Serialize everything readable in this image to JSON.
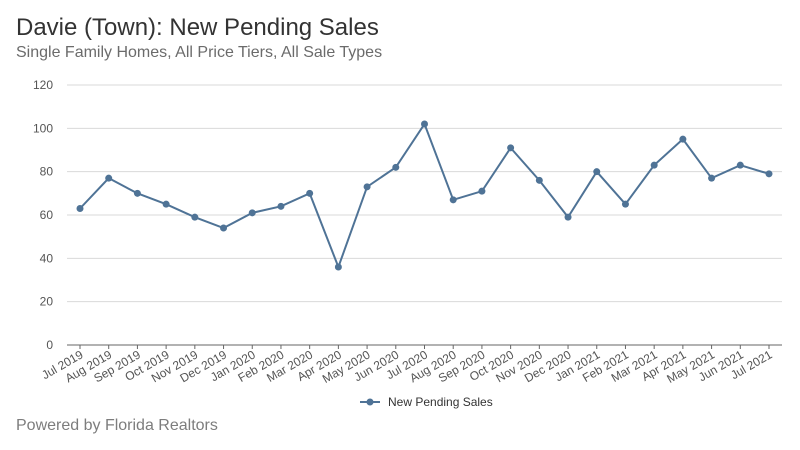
{
  "header": {
    "title": "Davie (Town): New Pending Sales",
    "subtitle": "Single Family Homes, All Price Tiers, All Sale Types"
  },
  "footer": {
    "text": "Powered by Florida Realtors"
  },
  "colors": {
    "series": "#4f7396",
    "grid": "#d9d9d9",
    "axis": "#666666"
  },
  "chart_data": {
    "type": "line",
    "title": "Davie (Town): New Pending Sales",
    "subtitle": "Single Family Homes, All Price Tiers, All Sale Types",
    "xlabel": "",
    "ylabel": "",
    "ylim": [
      0,
      120
    ],
    "yticks": [
      0,
      20,
      40,
      60,
      80,
      100,
      120
    ],
    "grid": true,
    "legend": "bottom-center",
    "categories": [
      "Jul 2019",
      "Aug 2019",
      "Sep 2019",
      "Oct 2019",
      "Nov 2019",
      "Dec 2019",
      "Jan 2020",
      "Feb 2020",
      "Mar 2020",
      "Apr 2020",
      "May 2020",
      "Jun 2020",
      "Jul 2020",
      "Aug 2020",
      "Sep 2020",
      "Oct 2020",
      "Nov 2020",
      "Dec 2020",
      "Jan 2021",
      "Feb 2021",
      "Mar 2021",
      "Apr 2021",
      "May 2021",
      "Jun 2021",
      "Jul 2021"
    ],
    "series": [
      {
        "name": "New Pending Sales",
        "values": [
          63,
          77,
          70,
          65,
          59,
          54,
          61,
          64,
          70,
          36,
          73,
          82,
          102,
          67,
          71,
          91,
          76,
          59,
          80,
          65,
          83,
          95,
          77,
          83,
          79
        ]
      }
    ]
  }
}
